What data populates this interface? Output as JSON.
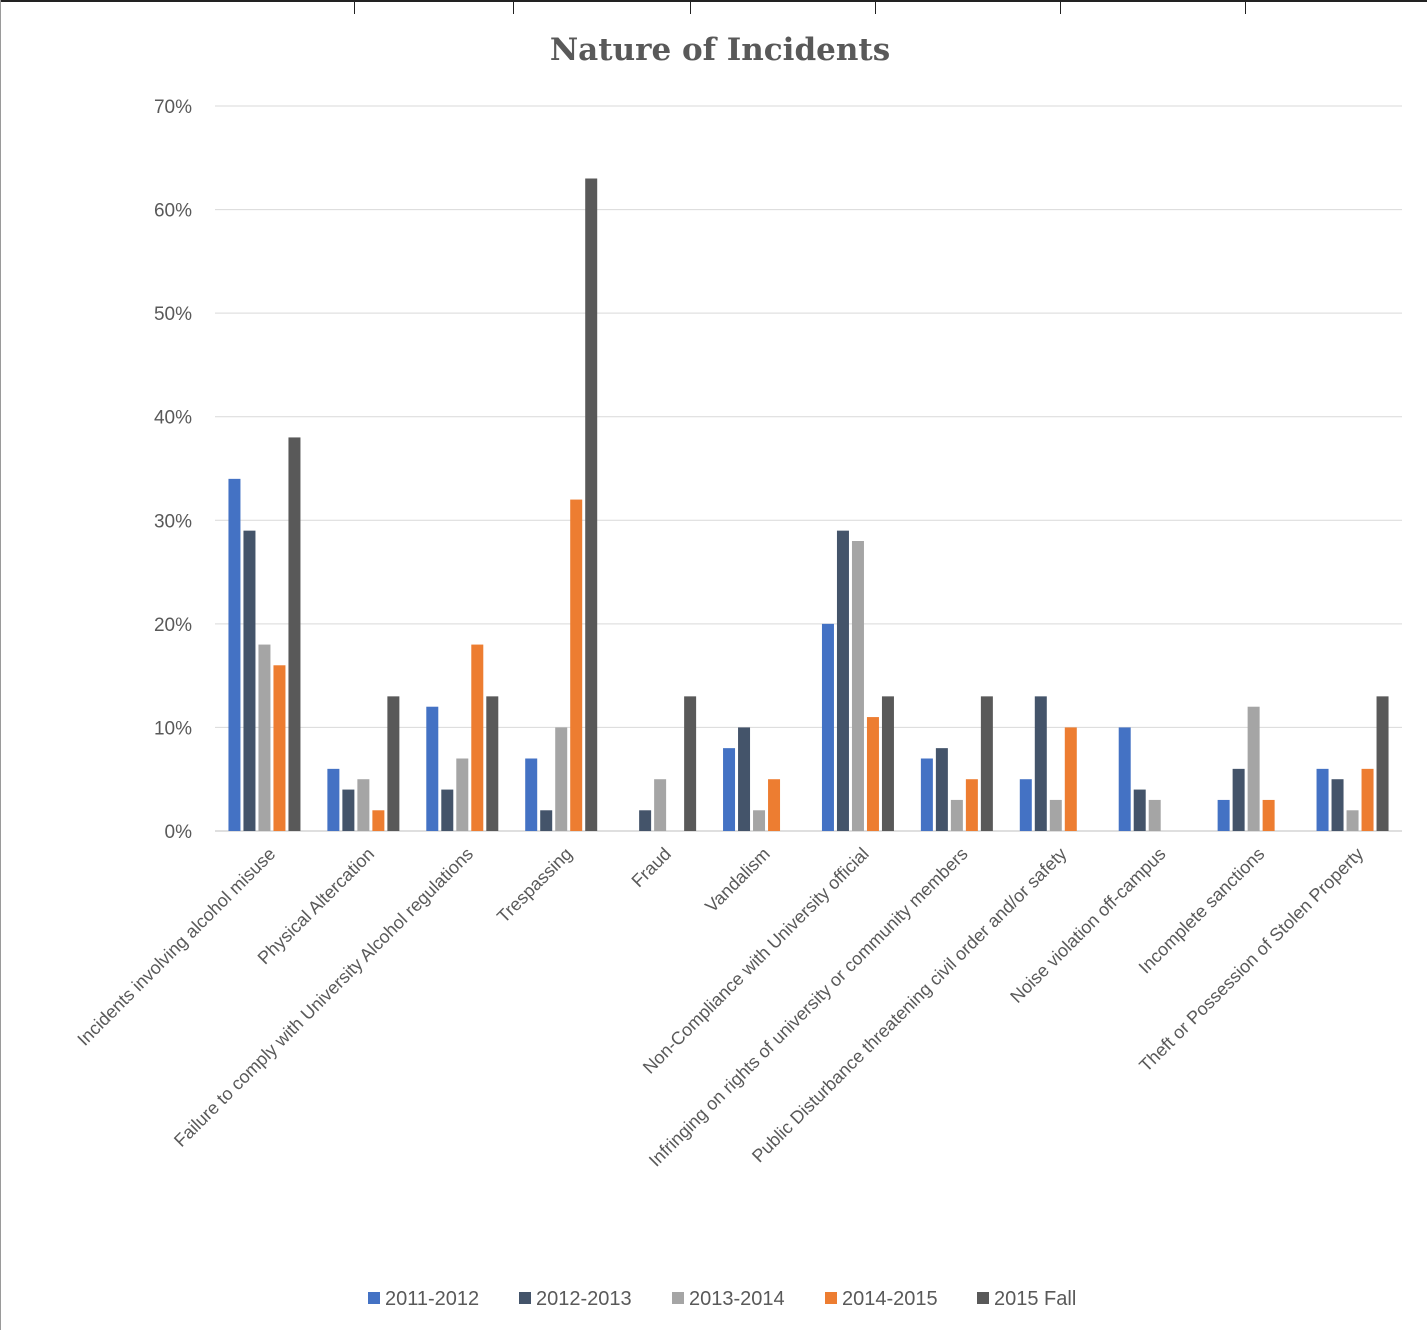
{
  "chart_data": {
    "type": "bar",
    "title": "Nature of Incidents",
    "xlabel": "",
    "ylabel": "",
    "ylim": [
      0,
      70
    ],
    "yticks": [
      "0%",
      "10%",
      "20%",
      "30%",
      "40%",
      "50%",
      "60%",
      "70%"
    ],
    "grid": true,
    "legend_position": "bottom",
    "categories": [
      "Incidents involving alcohol misuse",
      "Physical Altercation",
      "Failure to comply with University Alcohol regulations",
      "Trespassing",
      "Fraud",
      "Vandalism",
      "Non-Compliance with University official",
      "Infringing on rights of university or community members",
      "Public Disturbance threatening civil order and/or safety",
      "Noise violation off-campus",
      "Incomplete sanctions",
      "Theft or Possession of Stolen Property"
    ],
    "series": [
      {
        "name": "2011-2012",
        "color": "#4472c4",
        "values": [
          34,
          6,
          12,
          7,
          0,
          8,
          20,
          7,
          5,
          10,
          3,
          6
        ]
      },
      {
        "name": "2012-2013",
        "color": "#44546a",
        "values": [
          29,
          4,
          4,
          2,
          2,
          10,
          29,
          8,
          13,
          4,
          6,
          5
        ]
      },
      {
        "name": "2013-2014",
        "color": "#a5a5a5",
        "values": [
          18,
          5,
          7,
          10,
          5,
          2,
          28,
          3,
          3,
          3,
          12,
          2
        ]
      },
      {
        "name": "2014-2015",
        "color": "#ed7d31",
        "values": [
          16,
          2,
          18,
          32,
          0,
          5,
          11,
          5,
          10,
          0,
          3,
          6
        ]
      },
      {
        "name": "2015 Fall",
        "color": "#595959",
        "values": [
          38,
          13,
          13,
          63,
          13,
          0,
          13,
          13,
          0,
          0,
          0,
          13
        ]
      }
    ]
  }
}
